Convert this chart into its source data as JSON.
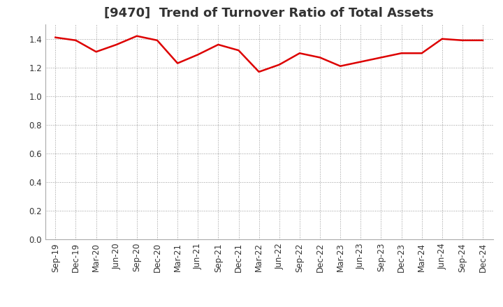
{
  "title": "[9470]  Trend of Turnover Ratio of Total Assets",
  "x_labels": [
    "Sep-19",
    "Dec-19",
    "Mar-20",
    "Jun-20",
    "Sep-20",
    "Dec-20",
    "Mar-21",
    "Jun-21",
    "Sep-21",
    "Dec-21",
    "Mar-22",
    "Jun-22",
    "Sep-22",
    "Dec-22",
    "Mar-23",
    "Jun-23",
    "Sep-23",
    "Dec-23",
    "Mar-24",
    "Jun-24",
    "Sep-24",
    "Dec-24"
  ],
  "values": [
    1.41,
    1.39,
    1.31,
    1.36,
    1.42,
    1.39,
    1.23,
    1.29,
    1.36,
    1.32,
    1.17,
    1.22,
    1.3,
    1.27,
    1.21,
    1.24,
    1.27,
    1.3,
    1.3,
    1.4,
    1.39,
    1.39
  ],
  "line_color": "#DD0000",
  "line_width": 1.8,
  "ylim": [
    0.0,
    1.5
  ],
  "yticks": [
    0.0,
    0.2,
    0.4,
    0.6,
    0.8,
    1.0,
    1.2,
    1.4
  ],
  "grid_color": "#999999",
  "background_color": "#ffffff",
  "title_fontsize": 13,
  "tick_fontsize": 8.5,
  "title_color": "#333333"
}
